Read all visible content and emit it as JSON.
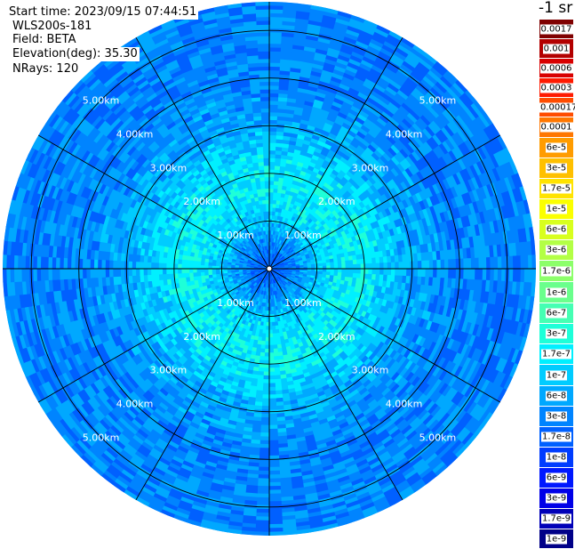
{
  "header": {
    "start_time": "Start time: 2023/09/15 07:44:51",
    "instrument": "WLS200s-181",
    "field": "Field: BETA",
    "elevation": "Elevation(deg): 35.30",
    "nrays": "NRays: 120"
  },
  "colorbar": {
    "unit_label": "-1 sr",
    "levels": [
      {
        "label": "0.0017",
        "color": "#7f0000"
      },
      {
        "label": "0.001",
        "color": "#b30000"
      },
      {
        "label": "0.0006",
        "color": "#d80000"
      },
      {
        "label": "0.0003",
        "color": "#ff1a00"
      },
      {
        "label": "0.00017",
        "color": "#ff4c00"
      },
      {
        "label": "0.0001",
        "color": "#ff7700"
      },
      {
        "label": "6e-5",
        "color": "#ff9c00"
      },
      {
        "label": "3e-5",
        "color": "#ffc000"
      },
      {
        "label": "1.7e-5",
        "color": "#ffe300"
      },
      {
        "label": "1e-5",
        "color": "#fbff00"
      },
      {
        "label": "6e-6",
        "color": "#d8ff1e"
      },
      {
        "label": "3e-6",
        "color": "#b3ff45"
      },
      {
        "label": "1.7e-6",
        "color": "#8cff6a"
      },
      {
        "label": "1e-6",
        "color": "#6aff8c"
      },
      {
        "label": "6e-7",
        "color": "#45ffb3"
      },
      {
        "label": "3e-7",
        "color": "#1effd8"
      },
      {
        "label": "1.7e-7",
        "color": "#00f0ff"
      },
      {
        "label": "1e-7",
        "color": "#00ccff"
      },
      {
        "label": "6e-8",
        "color": "#00a8ff"
      },
      {
        "label": "3e-8",
        "color": "#0084ff"
      },
      {
        "label": "1.7e-8",
        "color": "#0060ff"
      },
      {
        "label": "1e-8",
        "color": "#003cff"
      },
      {
        "label": "6e-9",
        "color": "#0018ff"
      },
      {
        "label": "3e-9",
        "color": "#0000e8"
      },
      {
        "label": "1.7e-9",
        "color": "#0000b8"
      },
      {
        "label": "1e-9",
        "color": "#000088"
      }
    ]
  },
  "chart_data": {
    "type": "heatmap",
    "projection": "polar (PPI scan)",
    "field": "BETA",
    "elevation_deg": 35.3,
    "n_rays": 120,
    "range_max_km": 5.6,
    "range_ring_labels_km": [
      "1.00km",
      "2.00km",
      "3.00km",
      "4.00km",
      "5.00km"
    ],
    "range_rings_km": [
      1,
      2,
      3,
      4,
      5
    ],
    "azimuth_grid_deg": [
      0,
      30,
      60,
      90,
      120,
      150,
      180,
      210,
      240,
      270,
      300,
      330
    ],
    "value_profile": [
      {
        "range_km": 0.2,
        "level": "1.7e-8"
      },
      {
        "range_km": 0.5,
        "level": "3e-8"
      },
      {
        "range_km": 1.0,
        "level": "1e-7"
      },
      {
        "range_km": 1.5,
        "level": "1.7e-7"
      },
      {
        "range_km": 2.0,
        "level": "1.7e-7"
      },
      {
        "range_km": 3.0,
        "level": "6e-8"
      },
      {
        "range_km": 4.0,
        "level": "3e-8"
      },
      {
        "range_km": 5.0,
        "level": "3e-8"
      },
      {
        "range_km": 5.6,
        "level": "3e-8"
      }
    ]
  }
}
